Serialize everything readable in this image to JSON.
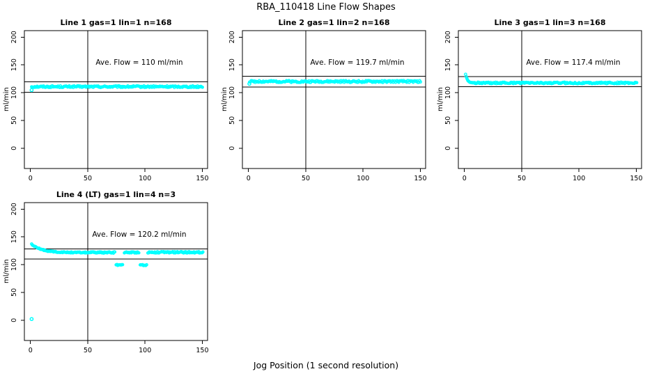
{
  "title": "RBA_110418  Line Flow Shapes",
  "xlabel": "Jog Position (1 second resolution)",
  "point_color": "#00ffff",
  "axis_color": "#000000",
  "chart_data": [
    {
      "type": "scatter",
      "title": "Line 1 gas=1 lin=1 n=168",
      "annotation": "Ave. Flow =  110  ml/min",
      "ylabel": "ml/min",
      "ave_flow": 110,
      "n": 168,
      "x_ticks": [
        0,
        50,
        100,
        150
      ],
      "y_ticks": [
        0,
        50,
        100,
        150,
        200
      ],
      "xlim": [
        -5.3,
        154.6
      ],
      "ylim": [
        -36.6,
        211.6
      ],
      "vline_x": 50,
      "ref_lines": [
        119.6,
        100.8
      ],
      "annotation_xy": [
        95,
        150
      ],
      "segments": [
        {
          "x0": 1,
          "x1": 150.5,
          "step": 0.7,
          "y": 110.7,
          "jitter": 1.5
        }
      ],
      "extra_points": [
        [
          1,
          104.5
        ]
      ]
    },
    {
      "type": "scatter",
      "title": "Line 2 gas=1 lin=2 n=168",
      "annotation": "Ave. Flow =  119.7  ml/min",
      "ylabel": "ml/min",
      "ave_flow": 119.7,
      "n": 168,
      "x_ticks": [
        0,
        50,
        100,
        150
      ],
      "y_ticks": [
        0,
        50,
        100,
        150,
        200
      ],
      "xlim": [
        -5.3,
        154.6
      ],
      "ylim": [
        -36.6,
        211.6
      ],
      "vline_x": 50,
      "ref_lines": [
        129.4,
        109.9
      ],
      "annotation_xy": [
        95,
        150
      ],
      "segments": [
        {
          "x0": 1,
          "x1": 150.5,
          "step": 0.7,
          "y": 120.0,
          "jitter": 1.7
        }
      ],
      "extra_points": [
        [
          0.8,
          116.0
        ]
      ]
    },
    {
      "type": "scatter",
      "title": "Line 3 gas=1 lin=3 n=168",
      "annotation": "Ave. Flow =  117.4  ml/min",
      "ylabel": "ml/min",
      "ave_flow": 117.4,
      "n": 168,
      "x_ticks": [
        0,
        50,
        100,
        150
      ],
      "y_ticks": [
        0,
        50,
        100,
        150,
        200
      ],
      "xlim": [
        -5.3,
        154.6
      ],
      "ylim": [
        -36.6,
        211.6
      ],
      "vline_x": 50,
      "ref_lines": [
        128.7,
        111.0
      ],
      "annotation_xy": [
        95,
        150
      ],
      "segments": [
        {
          "x0": 1,
          "x1": 9,
          "step": 0.5,
          "decay": {
            "y0": 133.5,
            "y1": 117.5,
            "tau": 1.6
          },
          "jitter": 0.6
        },
        {
          "x0": 9,
          "x1": 150.5,
          "step": 0.7,
          "y": 117.4,
          "jitter": 1.4
        }
      ],
      "extra_points": []
    },
    {
      "type": "scatter",
      "title": "Line 4 (LT) gas=1 lin=4 n=3",
      "annotation": "Ave. Flow =  120.2  ml/min",
      "ylabel": "ml/min",
      "ave_flow": 120.2,
      "n": 3,
      "x_ticks": [
        0,
        50,
        100,
        150
      ],
      "y_ticks": [
        0,
        50,
        100,
        150,
        200
      ],
      "xlim": [
        -5.3,
        154.6
      ],
      "ylim": [
        -36.6,
        211.6
      ],
      "vline_x": 50,
      "ref_lines": [
        128.2,
        110.0
      ],
      "annotation_xy": [
        95,
        150
      ],
      "segments": [
        {
          "x0": 1,
          "x1": 52,
          "step": 0.6,
          "decay": {
            "y0": 136.5,
            "y1": 121.6,
            "tau": 9
          },
          "jitter": 0.9
        },
        {
          "x0": 52,
          "x1": 74,
          "step": 0.6,
          "y": 121.8,
          "jitter": 1.2
        },
        {
          "x0": 82,
          "x1": 95,
          "step": 0.6,
          "y": 122.0,
          "jitter": 1.2
        },
        {
          "x0": 102.5,
          "x1": 150.5,
          "step": 0.6,
          "y": 122.2,
          "jitter": 1.3
        },
        {
          "x0": 74.8,
          "x1": 80.5,
          "step": 0.7,
          "y": 99.5,
          "jitter": 1.0
        },
        {
          "x0": 95.8,
          "x1": 101.5,
          "step": 0.7,
          "y": 99.0,
          "jitter": 1.0
        }
      ],
      "extra_points": [
        [
          1,
          2
        ]
      ]
    }
  ]
}
